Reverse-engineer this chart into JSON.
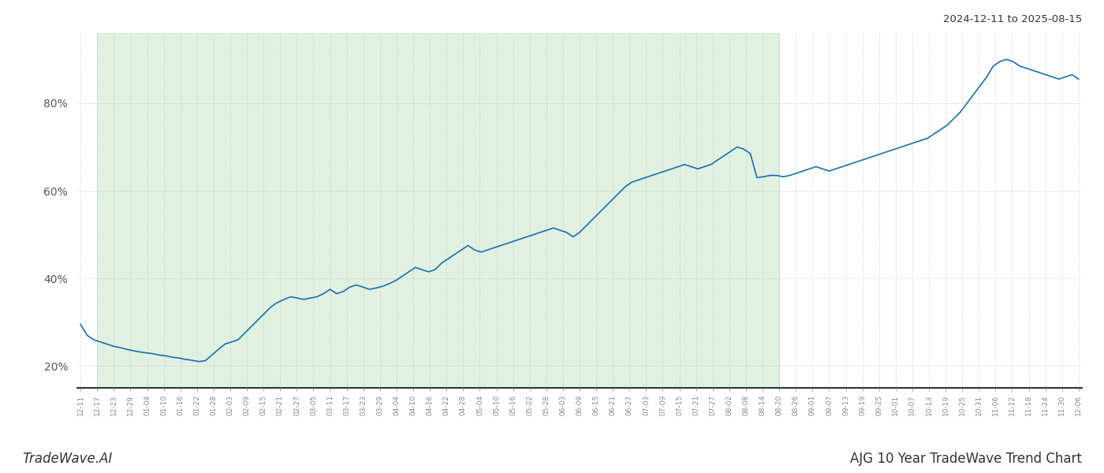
{
  "title_top_right": "2024-12-11 to 2025-08-15",
  "title_bottom_left": "TradeWave.AI",
  "title_bottom_right": "AJG 10 Year TradeWave Trend Chart",
  "line_color": "#1a6faf",
  "shaded_region_color": "#c8e6c9",
  "shaded_region_alpha": 0.55,
  "background_color": "#ffffff",
  "grid_color": "#b8b8b8",
  "ylim": [
    15,
    96
  ],
  "yticks": [
    20,
    40,
    60,
    80
  ],
  "x_labels": [
    "12-11",
    "12-17",
    "12-23",
    "12-29",
    "01-04",
    "01-10",
    "01-16",
    "01-22",
    "01-28",
    "02-03",
    "02-09",
    "02-15",
    "02-21",
    "02-27",
    "03-05",
    "03-11",
    "03-17",
    "03-23",
    "03-29",
    "04-04",
    "04-10",
    "04-16",
    "04-22",
    "04-28",
    "05-04",
    "05-10",
    "05-16",
    "05-22",
    "05-28",
    "06-03",
    "06-09",
    "06-15",
    "06-21",
    "06-27",
    "07-03",
    "07-09",
    "07-15",
    "07-21",
    "07-27",
    "08-02",
    "08-08",
    "08-14",
    "08-20",
    "08-26",
    "09-01",
    "09-07",
    "09-13",
    "09-19",
    "09-25",
    "10-01",
    "10-07",
    "10-13",
    "10-19",
    "10-25",
    "10-31",
    "11-06",
    "11-12",
    "11-18",
    "11-24",
    "11-30",
    "12-06"
  ],
  "shaded_start_label": "12-17",
  "shaded_end_label": "08-20",
  "y_values": [
    29.5,
    27.0,
    26.0,
    25.5,
    25.0,
    24.5,
    24.2,
    23.8,
    23.5,
    23.2,
    23.0,
    22.8,
    22.5,
    22.3,
    22.0,
    21.8,
    21.5,
    21.3,
    21.0,
    21.2,
    22.5,
    23.8,
    25.0,
    25.5,
    26.0,
    27.5,
    29.0,
    30.5,
    32.0,
    33.5,
    34.5,
    35.2,
    35.8,
    35.5,
    35.2,
    35.5,
    35.8,
    36.5,
    37.5,
    36.5,
    37.0,
    38.0,
    38.5,
    38.0,
    37.5,
    37.8,
    38.2,
    38.8,
    39.5,
    40.5,
    41.5,
    42.5,
    42.0,
    41.5,
    42.0,
    43.5,
    44.5,
    45.5,
    46.5,
    47.5,
    46.5,
    46.0,
    46.5,
    47.0,
    47.5,
    48.0,
    48.5,
    49.0,
    49.5,
    50.0,
    50.5,
    51.0,
    51.5,
    51.0,
    50.5,
    49.5,
    50.5,
    52.0,
    53.5,
    55.0,
    56.5,
    58.0,
    59.5,
    61.0,
    62.0,
    62.5,
    63.0,
    63.5,
    64.0,
    64.5,
    65.0,
    65.5,
    66.0,
    65.5,
    65.0,
    65.5,
    66.0,
    67.0,
    68.0,
    69.0,
    70.0,
    69.5,
    68.5,
    63.0,
    63.2,
    63.5,
    63.5,
    63.2,
    63.5,
    64.0,
    64.5,
    65.0,
    65.5,
    65.0,
    64.5,
    65.0,
    65.5,
    66.0,
    66.5,
    67.0,
    67.5,
    68.0,
    68.5,
    69.0,
    69.5,
    70.0,
    70.5,
    71.0,
    71.5,
    72.0,
    73.0,
    74.0,
    75.0,
    76.5,
    78.0,
    80.0,
    82.0,
    84.0,
    86.0,
    88.5,
    89.5,
    90.0,
    89.5,
    88.5,
    88.0,
    87.5,
    87.0,
    86.5,
    86.0,
    85.5,
    86.0,
    86.5,
    85.5
  ]
}
